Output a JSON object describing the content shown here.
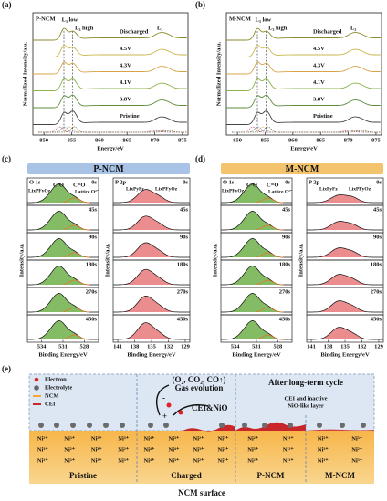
{
  "panels": {
    "a": {
      "label": "(a)",
      "sample": "P-NCM",
      "peaks": [
        "L₃ low",
        "L₃ high",
        "L₂"
      ],
      "curves": [
        {
          "name": "Discharged",
          "color": "#8a8a2a"
        },
        {
          "name": "4.5V",
          "color": "#c9b64a"
        },
        {
          "name": "4.3V",
          "color": "#d7a347"
        },
        {
          "name": "4.1V",
          "color": "#8cb24a"
        },
        {
          "name": "3.8V",
          "color": "#5d8c3a"
        },
        {
          "name": "Pristine",
          "color": "#444444"
        }
      ],
      "xticks": [
        "850",
        "855",
        "860",
        "865",
        "870",
        "875"
      ],
      "xlabel": "Energy/eV",
      "ylabel": "Normalized Intensity/a.u."
    },
    "b": {
      "label": "(b)",
      "sample": "M-NCM",
      "peaks": [
        "L₃ low",
        "L₃ high",
        "L₂"
      ],
      "curves": [
        {
          "name": "Discharged",
          "color": "#8a8a2a"
        },
        {
          "name": "4.5V",
          "color": "#c9b64a"
        },
        {
          "name": "4.3V",
          "color": "#d7a347"
        },
        {
          "name": "4.1V",
          "color": "#8cb24a"
        },
        {
          "name": "3.8V",
          "color": "#5d8c3a"
        },
        {
          "name": "Pristine",
          "color": "#444444"
        }
      ],
      "xticks": [
        "850",
        "855",
        "860",
        "865",
        "870",
        "875"
      ],
      "xlabel": "Energy/eV",
      "ylabel": "Normalized Intensity/a.u."
    },
    "c": {
      "label": "(c)",
      "sample": "P-NCM",
      "banner_color": "#a9c3e6",
      "o1s": {
        "title": "O 1s",
        "peaks": [
          "C-O",
          "C=O",
          "LixPFyOz",
          "Lattice O²⁻"
        ],
        "xticks": [
          "534",
          "531",
          "528"
        ]
      },
      "p2p": {
        "title": "P 2p",
        "peaks": [
          "LixPyFz",
          "LixPFyOz"
        ],
        "xticks": [
          "141",
          "138",
          "135",
          "132",
          "129"
        ]
      },
      "times": [
        "0s",
        "45s",
        "90s",
        "180s",
        "270s",
        "450s"
      ],
      "xlabel": "Binding Energy/eV",
      "ylabel": "Intensity/a.u."
    },
    "d": {
      "label": "(d)",
      "sample": "M-NCM",
      "banner_color": "#f4c36e",
      "o1s": {
        "title": "O 1s",
        "peaks": [
          "C-O",
          "C=O",
          "LixPFyOz",
          "Lattice O²⁻"
        ],
        "xticks": [
          "534",
          "531",
          "528"
        ]
      },
      "p2p": {
        "title": "P 2p",
        "peaks": [
          "LixPyFz",
          "LixPFyOz"
        ],
        "xticks": [
          "141",
          "138",
          "135",
          "132",
          "129"
        ]
      },
      "times": [
        "0s",
        "45s",
        "90s",
        "180s",
        "270s",
        "450s"
      ],
      "xlabel": "Binding Energy/eV",
      "ylabel": "Intensity/a.u."
    }
  },
  "schematic": {
    "label": "(e)",
    "legend": [
      "Electron",
      "Electrolyte",
      "NCM",
      "CEI"
    ],
    "gas": "(O₂, CO₂, CO↑)",
    "gas_label": "Gas evolution",
    "minus": "-",
    "plus": "+",
    "cei_nio": "CEI&NiO",
    "after": "After long-term cycle",
    "layer": [
      "CEI and inactive",
      "NiO-like layer"
    ],
    "regions": [
      {
        "name": "Pristine",
        "ions": [
          [
            "Ni²⁺",
            "Ni³⁺",
            "Ni²⁺",
            "Ni³⁺"
          ],
          [
            "Ni³⁺",
            "Ni²⁺",
            "Ni³⁺",
            "Ni²⁺"
          ],
          [
            "Ni³⁺",
            "Ni³⁺",
            "Ni²⁺",
            "Ni³⁺"
          ]
        ]
      },
      {
        "name": "Charged",
        "ions": [
          [
            "Ni⁴⁺",
            "Ni³⁺",
            "Ni²⁺",
            "Ni³⁺"
          ],
          [
            "Ni⁴⁺",
            "Ni⁴⁺",
            "Ni³⁺",
            "Ni²⁺"
          ],
          [
            "Ni⁴⁺",
            "Ni³⁺",
            "Ni²⁺",
            "Ni³⁺"
          ]
        ]
      },
      {
        "name": "P-NCM",
        "ions": [
          [
            "Ni²⁺",
            "Ni³⁺"
          ],
          [
            "Ni³⁺",
            "Ni²⁺"
          ],
          [
            "Ni²⁺",
            "Ni³⁺"
          ]
        ]
      },
      {
        "name": "M-NCM",
        "ions": [
          [
            "Ni³⁺",
            "Ni³⁺"
          ],
          [
            "Ni³⁺",
            "Ni²⁺"
          ],
          [
            "Ni³⁺",
            "Ni³⁺"
          ]
        ]
      }
    ],
    "footer": "NCM surface"
  }
}
